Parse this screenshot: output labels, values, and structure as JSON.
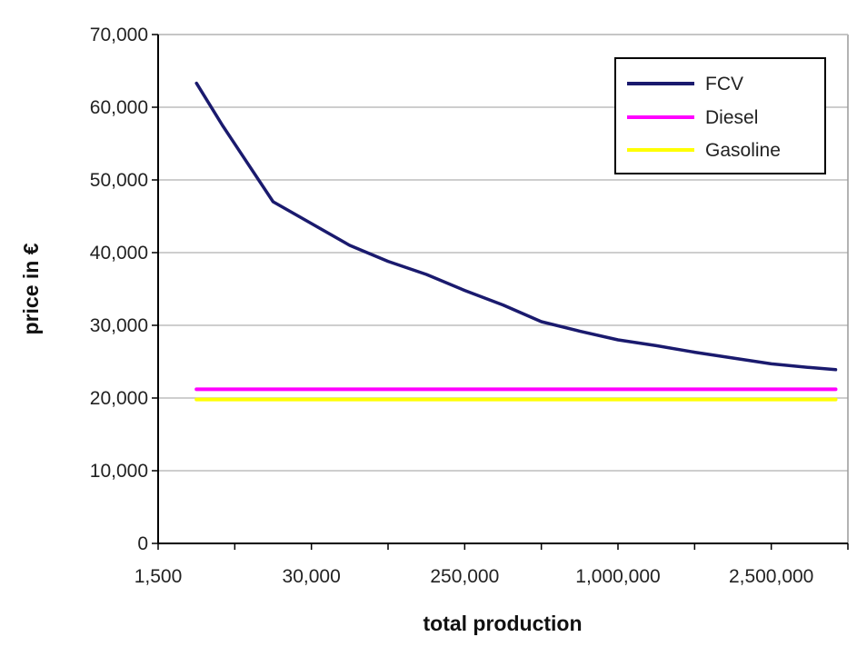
{
  "chart_data": {
    "type": "line",
    "title": "",
    "xlabel": "total production",
    "ylabel": "price in €",
    "x_tick_labels": [
      "1,500",
      "30,000",
      "250,000",
      "1,000,000",
      "2,500,000"
    ],
    "y_tick_labels": [
      "0",
      "10,000",
      "20,000",
      "30,000",
      "40,000",
      "50,000",
      "60,000",
      "70,000"
    ],
    "ylim": [
      0,
      70000
    ],
    "xlim": [
      0,
      4.5
    ],
    "grid": "horizontal",
    "legend_position": "top-right",
    "series": [
      {
        "name": "FCV",
        "color": "#1a1a6e",
        "points": [
          {
            "x": 0.25,
            "y": 63300
          },
          {
            "x": 0.42,
            "y": 57500
          },
          {
            "x": 0.75,
            "y": 47000
          },
          {
            "x": 1.0,
            "y": 44000
          },
          {
            "x": 1.25,
            "y": 41000
          },
          {
            "x": 1.5,
            "y": 38800
          },
          {
            "x": 1.75,
            "y": 37000
          },
          {
            "x": 2.0,
            "y": 34800
          },
          {
            "x": 2.25,
            "y": 32800
          },
          {
            "x": 2.5,
            "y": 30500
          },
          {
            "x": 2.75,
            "y": 29200
          },
          {
            "x": 3.0,
            "y": 28000
          },
          {
            "x": 3.25,
            "y": 27200
          },
          {
            "x": 3.5,
            "y": 26300
          },
          {
            "x": 3.75,
            "y": 25500
          },
          {
            "x": 4.0,
            "y": 24700
          },
          {
            "x": 4.25,
            "y": 24200
          },
          {
            "x": 4.42,
            "y": 23900
          }
        ]
      },
      {
        "name": "Diesel",
        "color": "#ff00ff",
        "points": [
          {
            "x": 0.25,
            "y": 21200
          },
          {
            "x": 4.42,
            "y": 21200
          }
        ]
      },
      {
        "name": "Gasoline",
        "color": "#ffff00",
        "points": [
          {
            "x": 0.25,
            "y": 19800
          },
          {
            "x": 4.42,
            "y": 19800
          }
        ]
      }
    ]
  }
}
